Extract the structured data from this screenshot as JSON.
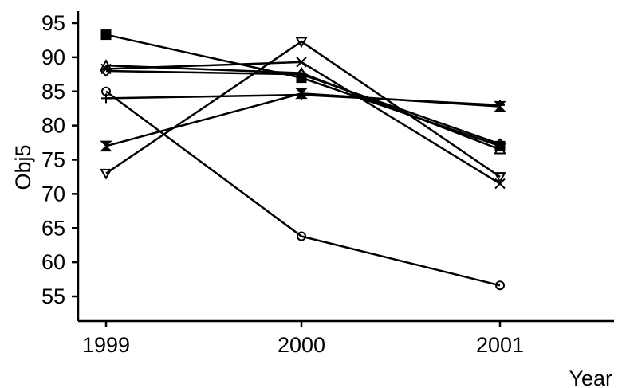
{
  "chart_data": {
    "type": "line",
    "title": "",
    "xlabel": "Year",
    "ylabel": "Obj5",
    "x": [
      "1999",
      "2000",
      "2001"
    ],
    "ylim": [
      52,
      97
    ],
    "yticks": [
      55,
      60,
      65,
      70,
      75,
      80,
      85,
      90,
      95
    ],
    "grid": false,
    "legend": "none",
    "series": [
      {
        "marker": "square-filled",
        "values": [
          93.3,
          87.0,
          77.0
        ]
      },
      {
        "marker": "triangle-up",
        "values": [
          88.8,
          87.7,
          76.5
        ]
      },
      {
        "marker": "diamond",
        "values": [
          88.0,
          87.5,
          77.3
        ]
      },
      {
        "marker": "x",
        "values": [
          88.3,
          89.3,
          71.5
        ]
      },
      {
        "marker": "plus",
        "values": [
          84.0,
          84.5,
          83.0
        ]
      },
      {
        "marker": "hourglass",
        "values": [
          77.0,
          84.7,
          82.8
        ]
      },
      {
        "marker": "triangle-down",
        "values": [
          73.0,
          92.3,
          72.5
        ]
      },
      {
        "marker": "circle",
        "values": [
          85.0,
          63.8,
          56.6
        ]
      }
    ]
  }
}
